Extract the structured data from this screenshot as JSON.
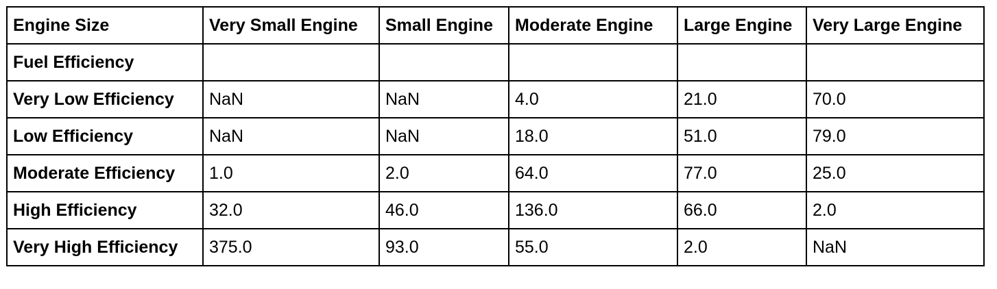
{
  "table": {
    "columns": [
      "Engine Size",
      "Very Small Engine",
      "Small Engine",
      "Moderate Engine",
      "Large Engine",
      "Very Large Engine"
    ],
    "index_name": "Fuel Efficiency",
    "rows": [
      {
        "label": "Very Low Efficiency",
        "values": [
          "NaN",
          "NaN",
          "4.0",
          "21.0",
          "70.0"
        ]
      },
      {
        "label": "Low Efficiency",
        "values": [
          "NaN",
          "NaN",
          "18.0",
          "51.0",
          "79.0"
        ]
      },
      {
        "label": "Moderate Efficiency",
        "values": [
          "1.0",
          "2.0",
          "64.0",
          "77.0",
          "25.0"
        ]
      },
      {
        "label": "High Efficiency",
        "values": [
          "32.0",
          "46.0",
          "136.0",
          "66.0",
          "2.0"
        ]
      },
      {
        "label": "Very High Efficiency",
        "values": [
          "375.0",
          "93.0",
          "55.0",
          "2.0",
          "NaN"
        ]
      }
    ]
  }
}
